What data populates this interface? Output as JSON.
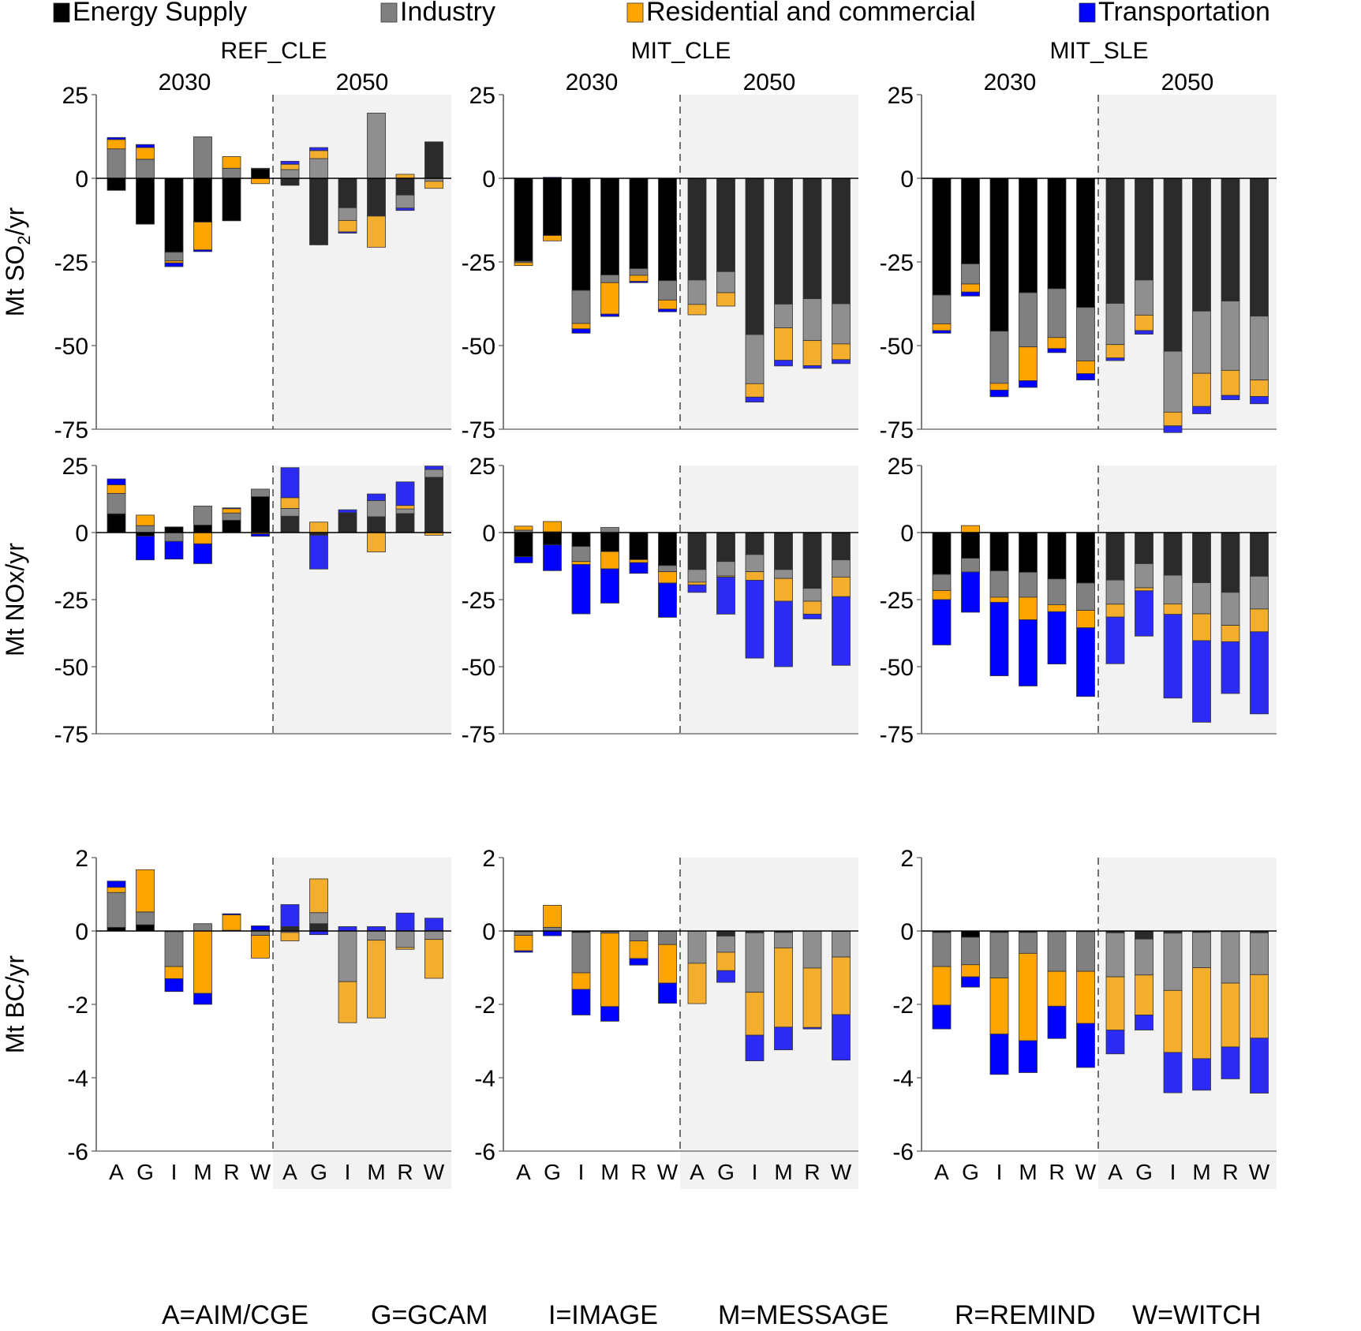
{
  "chart_data": {
    "type": "bar",
    "stacked": true,
    "legend": {
      "placement": "top",
      "entries": [
        {
          "name": "Energy Supply",
          "color": "#000000"
        },
        {
          "name": "Industry",
          "color": "#808080"
        },
        {
          "name": "Residential and commercial",
          "color": "#FFA500"
        },
        {
          "name": "Transportation",
          "color": "#0000FF"
        }
      ]
    },
    "sectors": [
      "Energy Supply",
      "Industry",
      "Residential and commercial",
      "Transportation"
    ],
    "colors_2030": [
      "#000000",
      "#808080",
      "#FFA500",
      "#0000FF"
    ],
    "colors_2050": [
      "#2B2B2B",
      "#8F8F8F",
      "#F4AE2E",
      "#2B2BF4"
    ],
    "scenarios": [
      "REF_CLE",
      "MIT_CLE",
      "MIT_SLE"
    ],
    "years": [
      "2030",
      "2050"
    ],
    "categories": [
      "A",
      "G",
      "I",
      "M",
      "R",
      "W"
    ],
    "model_key": [
      "A=AIM/CGE",
      "G=GCAM",
      "I=IMAGE",
      "M=MESSAGE",
      "R=REMIND",
      "W=WITCH"
    ],
    "rows": [
      {
        "ylabel": "Mt SO2/yr",
        "ylabel_main": "Mt SO",
        "ylabel_sub": "2",
        "ylabel_tail": "/yr",
        "ylim": [
          -75,
          25
        ],
        "yticks": [
          25,
          0,
          -25,
          -50,
          -75
        ],
        "ytick_labels": [
          "25",
          "0",
          "-25",
          "-50",
          "-75"
        ],
        "panels": [
          {
            "scenario": "REF_CLE",
            "2030": [
              [
                -3.6,
                8.8,
                2.8,
                0.6
              ],
              [
                -13.7,
                5.7,
                3.5,
                0.9
              ],
              [
                -22.1,
                -2.6,
                -0.6,
                -1.1
              ],
              [
                -13.1,
                12.4,
                -8.3,
                -0.5
              ],
              [
                -12.7,
                3.0,
                3.5,
                0
              ],
              [
                2.8,
                0,
                -1.6,
                0.2
              ]
            ],
            "2050": [
              [
                -2.1,
                2.6,
                1.6,
                0.9
              ],
              [
                -19.9,
                5.9,
                2.4,
                0.9
              ],
              [
                -8.8,
                -3.8,
                -3.4,
                -0.4
              ],
              [
                -11.3,
                19.5,
                -9.3,
                0
              ],
              [
                -5.0,
                -3.9,
                1.2,
                -0.7
              ],
              [
                10.9,
                -0.9,
                -2.1,
                0
              ]
            ]
          },
          {
            "scenario": "MIT_CLE",
            "2030": [
              [
                -24.8,
                -0.4,
                -0.9,
                0
              ],
              [
                -17.1,
                0,
                -1.6,
                0.3
              ],
              [
                -33.5,
                -9.9,
                -1.6,
                -1.3
              ],
              [
                -28.9,
                -2.3,
                -9.4,
                -0.7
              ],
              [
                -27.0,
                -2.0,
                -1.8,
                -0.4
              ],
              [
                -30.6,
                -5.8,
                -2.7,
                -0.8
              ]
            ],
            "2050": [
              [
                -30.4,
                -7.3,
                -3.1,
                0
              ],
              [
                -27.9,
                -6.3,
                -4.0,
                0
              ],
              [
                -46.7,
                -14.7,
                -4.0,
                -1.5
              ],
              [
                -37.6,
                -7.1,
                -9.7,
                -1.7
              ],
              [
                -36.0,
                -12.5,
                -7.5,
                -0.8
              ],
              [
                -37.5,
                -12.0,
                -4.7,
                -1.2
              ]
            ]
          },
          {
            "scenario": "MIT_SLE",
            "2030": [
              [
                -34.9,
                -8.6,
                -2.0,
                -0.8
              ],
              [
                -25.6,
                -6.0,
                -2.4,
                -1.2
              ],
              [
                -45.7,
                -15.6,
                -2.0,
                -2.0
              ],
              [
                -34.2,
                -16.2,
                -10.1,
                -2.0
              ],
              [
                -33.0,
                -14.6,
                -3.3,
                -1.2
              ],
              [
                -38.6,
                -16.0,
                -3.8,
                -1.9
              ]
            ],
            "2050": [
              [
                -37.4,
                -12.3,
                -4.0,
                -0.8
              ],
              [
                -30.4,
                -10.5,
                -4.6,
                -1.1
              ],
              [
                -51.7,
                -18.2,
                -4.1,
                -2.0
              ],
              [
                -39.7,
                -18.6,
                -9.9,
                -2.2
              ],
              [
                -36.7,
                -20.7,
                -7.5,
                -1.3
              ],
              [
                -41.2,
                -19.1,
                -4.9,
                -2.2
              ]
            ]
          }
        ]
      },
      {
        "ylabel": "Mt NOx/yr",
        "ylabel_main": "Mt NOx/yr",
        "ylim": [
          -75,
          25
        ],
        "yticks": [
          25,
          0,
          -25,
          -50,
          -75
        ],
        "ytick_labels": [
          "25",
          "0",
          "-25",
          "-50",
          "-75"
        ],
        "panels": [
          {
            "scenario": "REF_CLE",
            "2030": [
              [
                7.0,
                7.6,
                3.2,
                2.2
              ],
              [
                -1.3,
                2.6,
                3.9,
                -8.9
              ],
              [
                2.1,
                -3.3,
                0,
                -6.6
              ],
              [
                2.8,
                7.1,
                -4.2,
                -7.4
              ],
              [
                4.6,
                2.7,
                1.6,
                0.3
              ],
              [
                13.4,
                2.8,
                -0.5,
                -0.9
              ]
            ],
            "2050": [
              [
                6.1,
                2.9,
                4.0,
                11.2
              ],
              [
                -1.0,
                0,
                3.9,
                -12.6
              ],
              [
                7.4,
                0,
                0,
                1.1
              ],
              [
                5.9,
                6.0,
                -7.2,
                2.5
              ],
              [
                7.1,
                1.7,
                1.3,
                8.8
              ],
              [
                20.6,
                2.9,
                -1.0,
                1.3
              ]
            ]
          },
          {
            "scenario": "MIT_CLE",
            "2030": [
              [
                -9.0,
                0.9,
                1.5,
                -2.3
              ],
              [
                -4.6,
                0.3,
                3.8,
                -9.6
              ],
              [
                -5.2,
                -5.6,
                -1.1,
                -18.4
              ],
              [
                -7.1,
                1.9,
                -6.4,
                -12.8
              ],
              [
                -10.1,
                0,
                -1.1,
                -4.0
              ],
              [
                -12.3,
                -2.3,
                -4.2,
                -12.8
              ]
            ],
            "2050": [
              [
                -13.8,
                -4.7,
                -1.0,
                -2.8
              ],
              [
                -10.8,
                -5.4,
                -0.4,
                -13.8
              ],
              [
                -8.2,
                -6.4,
                -3.2,
                -29.0
              ],
              [
                -13.8,
                -3.3,
                -8.5,
                -24.4
              ],
              [
                -20.8,
                -4.8,
                -4.8,
                -1.8
              ],
              [
                -10.2,
                -6.4,
                -7.3,
                -25.6
              ]
            ]
          },
          {
            "scenario": "MIT_SLE",
            "2030": [
              [
                -15.6,
                -6.0,
                -3.4,
                -16.9
              ],
              [
                -9.6,
                -5.1,
                2.6,
                -15.0
              ],
              [
                -14.3,
                -9.8,
                -1.9,
                -27.4
              ],
              [
                -14.8,
                -9.3,
                -8.4,
                -24.7
              ],
              [
                -17.3,
                -9.6,
                -2.6,
                -19.5
              ],
              [
                -18.8,
                -10.2,
                -6.5,
                -25.6
              ]
            ],
            "2050": [
              [
                -17.7,
                -9.0,
                -4.8,
                -17.4
              ],
              [
                -11.6,
                -9.0,
                -1.1,
                -16.9
              ],
              [
                -15.9,
                -10.7,
                -3.9,
                -31.2
              ],
              [
                -18.7,
                -11.6,
                -10.0,
                -30.4
              ],
              [
                -22.3,
                -12.3,
                -6.1,
                -19.3
              ],
              [
                -16.3,
                -12.2,
                -8.5,
                -30.6
              ]
            ]
          }
        ]
      },
      {
        "ylabel": "Mt BC/yr",
        "ylabel_main": "Mt BC/yr",
        "ylim": [
          -6,
          2
        ],
        "yticks": [
          2,
          0,
          -2,
          -4,
          -6
        ],
        "ytick_labels": [
          "2",
          "0",
          "-2",
          "-4",
          "-6"
        ],
        "panels": [
          {
            "scenario": "REF_CLE",
            "2030": [
              [
                0.1,
                0.95,
                0.14,
                0.17
              ],
              [
                0.17,
                0.35,
                1.15,
                0
              ],
              [
                -0.02,
                -0.95,
                -0.33,
                -0.35
              ],
              [
                0,
                0.2,
                -1.7,
                -0.3
              ],
              [
                0.02,
                0,
                0.42,
                0.03
              ],
              [
                0.02,
                -0.12,
                -0.62,
                0.12
              ]
            ],
            "2050": [
              [
                0.12,
                -0.04,
                -0.23,
                0.6
              ],
              [
                0.2,
                0.3,
                0.92,
                -0.1
              ],
              [
                0,
                -1.38,
                -1.12,
                0.12
              ],
              [
                0,
                -0.25,
                -2.12,
                0.12
              ],
              [
                0,
                -0.45,
                -0.05,
                0.49
              ],
              [
                0.01,
                -0.23,
                -1.06,
                0.34
              ]
            ]
          },
          {
            "scenario": "MIT_CLE",
            "2030": [
              [
                -0.02,
                -0.1,
                -0.42,
                -0.04
              ],
              [
                0,
                0.1,
                0.6,
                -0.13
              ],
              [
                -0.04,
                -1.1,
                -0.45,
                -0.7
              ],
              [
                -0.02,
                -0.04,
                -2.0,
                -0.4
              ],
              [
                0,
                -0.27,
                -0.48,
                -0.18
              ],
              [
                0,
                -0.37,
                -1.05,
                -0.55
              ]
            ],
            "2050": [
              [
                0,
                -0.88,
                -1.1,
                0
              ],
              [
                -0.14,
                -0.44,
                -0.5,
                -0.32
              ],
              [
                -0.05,
                -1.62,
                -1.17,
                -0.7
              ],
              [
                -0.04,
                -0.42,
                -2.16,
                -0.62
              ],
              [
                0,
                -1.01,
                -1.62,
                -0.04
              ],
              [
                -0.01,
                -0.7,
                -1.57,
                -1.24
              ]
            ]
          },
          {
            "scenario": "MIT_SLE",
            "2030": [
              [
                -0.04,
                -0.93,
                -1.05,
                -0.65
              ],
              [
                -0.17,
                -0.75,
                -0.33,
                -0.28
              ],
              [
                -0.04,
                -1.24,
                -1.53,
                -1.1
              ],
              [
                -0.04,
                -0.57,
                -2.38,
                -0.87
              ],
              [
                -0.02,
                -1.08,
                -0.95,
                -0.88
              ],
              [
                -0.02,
                -1.08,
                -1.42,
                -1.2
              ]
            ],
            "2050": [
              [
                -0.05,
                -1.2,
                -1.45,
                -0.65
              ],
              [
                -0.22,
                -0.98,
                -1.09,
                -0.41
              ],
              [
                -0.06,
                -1.56,
                -1.69,
                -1.1
              ],
              [
                -0.04,
                -0.96,
                -2.48,
                -0.86
              ],
              [
                -0.02,
                -1.4,
                -1.74,
                -0.87
              ],
              [
                -0.05,
                -1.14,
                -1.73,
                -1.5
              ]
            ]
          }
        ]
      }
    ]
  }
}
